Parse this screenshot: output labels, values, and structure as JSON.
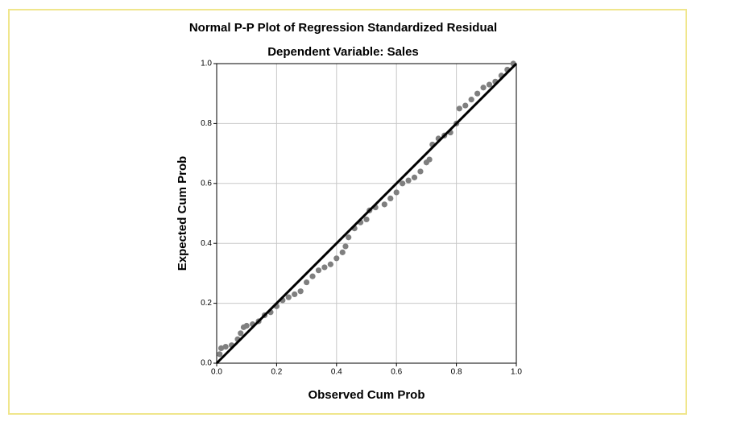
{
  "chart_data": {
    "type": "scatter",
    "title": "Normal P-P Plot of Regression Standardized Residual",
    "subtitle": "Dependent Variable: Sales",
    "x_label": "Observed Cum Prob",
    "y_label": "Expected Cum Prob",
    "x": [
      0.01,
      0.015,
      0.03,
      0.05,
      0.07,
      0.08,
      0.09,
      0.1,
      0.12,
      0.14,
      0.16,
      0.18,
      0.2,
      0.22,
      0.24,
      0.26,
      0.28,
      0.3,
      0.32,
      0.34,
      0.36,
      0.38,
      0.4,
      0.42,
      0.43,
      0.44,
      0.46,
      0.48,
      0.5,
      0.51,
      0.53,
      0.56,
      0.58,
      0.6,
      0.62,
      0.64,
      0.66,
      0.68,
      0.7,
      0.71,
      0.72,
      0.74,
      0.76,
      0.78,
      0.8,
      0.81,
      0.83,
      0.85,
      0.87,
      0.89,
      0.91,
      0.93,
      0.95,
      0.97,
      0.99
    ],
    "values": [
      0.03,
      0.05,
      0.055,
      0.06,
      0.08,
      0.1,
      0.12,
      0.125,
      0.13,
      0.14,
      0.16,
      0.17,
      0.19,
      0.21,
      0.22,
      0.23,
      0.24,
      0.27,
      0.29,
      0.31,
      0.32,
      0.33,
      0.35,
      0.37,
      0.39,
      0.42,
      0.45,
      0.47,
      0.48,
      0.51,
      0.52,
      0.53,
      0.55,
      0.57,
      0.6,
      0.61,
      0.62,
      0.64,
      0.67,
      0.68,
      0.73,
      0.75,
      0.76,
      0.77,
      0.8,
      0.85,
      0.86,
      0.88,
      0.9,
      0.92,
      0.93,
      0.94,
      0.96,
      0.98,
      1.0
    ],
    "color": "#7f7f7f",
    "reference_line": {
      "x": [
        0,
        1
      ],
      "y": [
        0,
        1
      ],
      "color": "#000000"
    },
    "xlim": [
      0,
      1
    ],
    "ylim": [
      0,
      1
    ],
    "xticks": [
      {
        "value": 0,
        "label": "0.0"
      },
      0.2,
      0.4,
      0.6,
      0.8,
      {
        "value": 1,
        "label": "1.0"
      }
    ],
    "yticks": [
      {
        "value": 0,
        "label": "0.0"
      },
      0.2,
      0.4,
      0.6,
      0.8,
      {
        "value": 1,
        "label": "1.0"
      }
    ],
    "grid": true
  }
}
